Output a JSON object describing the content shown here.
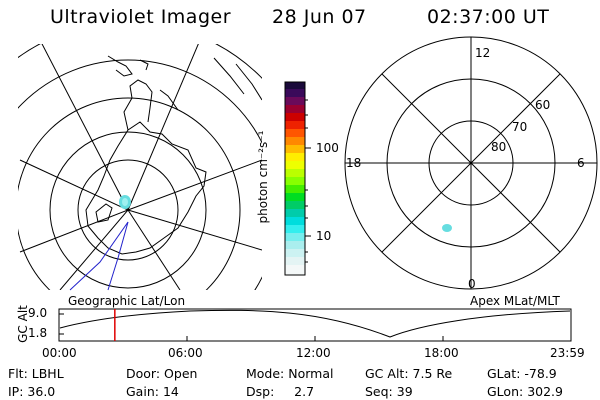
{
  "header": {
    "title": "Ultraviolet Imager",
    "date": "28 Jun 07",
    "time": "02:37:00 UT"
  },
  "colorbar": {
    "unit_label": "photon cm⁻²s⁻¹",
    "ticks": [
      "100",
      "10"
    ]
  },
  "right_plot": {
    "mlt_labels": {
      "top": "12",
      "left": "18",
      "right": "6",
      "bottom": "0"
    },
    "lat_labels": [
      "60",
      "70",
      "80"
    ]
  },
  "left_plot": {
    "caption": "Geographic Lat/Lon"
  },
  "right_caption": "Apex MLat/MLT",
  "altitude_plot": {
    "axis_label": "GC Alt",
    "y_ticks": [
      "9.0",
      "1.8"
    ],
    "x_ticks": [
      "00:00",
      "06:00",
      "12:00",
      "18:00",
      "23:59"
    ],
    "marker_time_hours": 2.617
  },
  "info": {
    "row1": [
      {
        "label": "Flt:",
        "value": "LBHL"
      },
      {
        "label": "Door:",
        "value": "Open"
      },
      {
        "label": "Mode:",
        "value": "Normal"
      },
      {
        "label": "GC Alt:",
        "value": "7.5 Re"
      },
      {
        "label": "GLat:",
        "value": "-78.9"
      }
    ],
    "row2": [
      {
        "label": "IP:",
        "value": "36.0"
      },
      {
        "label": "Gain:",
        "value": "14"
      },
      {
        "label": "Dsp:",
        "value": "2.7"
      },
      {
        "label": "Seq:",
        "value": "39"
      },
      {
        "label": "GLon:",
        "value": "302.9"
      }
    ]
  },
  "colors": {
    "marker": "#e00000",
    "track": "#2222cc",
    "aurora": "#66dde0"
  }
}
